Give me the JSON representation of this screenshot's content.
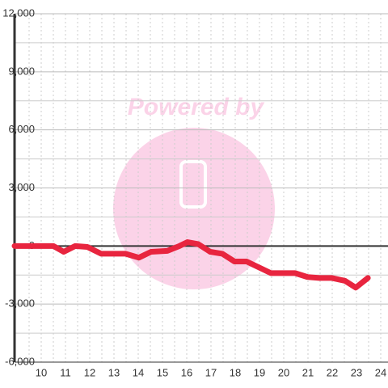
{
  "chart_data": {
    "type": "line",
    "annotations": [
      "Powered by"
    ],
    "x": [
      8.9,
      10.5,
      10.93,
      11.4,
      11.9,
      12.47,
      13.47,
      14.03,
      14.53,
      15.2,
      15.7,
      16.03,
      16.47,
      16.97,
      17.47,
      17.97,
      18.47,
      19.47,
      20.47,
      20.97,
      21.47,
      21.97,
      22.53,
      22.97,
      23.47
    ],
    "series": [
      {
        "color": "#e8253f",
        "values": [
          0,
          0,
          -300,
          0,
          -50,
          -400,
          -400,
          -600,
          -300,
          -250,
          0,
          200,
          100,
          -300,
          -400,
          -800,
          -800,
          -1400,
          -1400,
          -1600,
          -1650,
          -1650,
          -1800,
          -2150,
          -1650
        ]
      }
    ],
    "xlim": [
      8.9,
      24.3
    ],
    "xticks": [
      10,
      11,
      12,
      13,
      14,
      15,
      16,
      17,
      18,
      19,
      20,
      21,
      22,
      23,
      24
    ],
    "xminor": [
      9.5,
      10.5,
      11.5,
      12.5,
      13.5,
      14.5,
      15.5,
      16.5,
      17.5,
      18.5,
      19.5,
      20.5,
      21.5,
      22.5,
      23.5
    ],
    "ylim": [
      -6000,
      12000
    ],
    "yticks": [
      {
        "value": -6000,
        "label": "-6,000"
      },
      {
        "value": -3000,
        "label": "-3,000"
      },
      0,
      {
        "value": 3000,
        "label": "3,000"
      },
      {
        "value": 6000,
        "label": "6,000"
      },
      {
        "value": 9000,
        "label": "9,000"
      },
      {
        "value": 12000,
        "label": "12,000"
      }
    ],
    "yminor": [
      -4500,
      -1500,
      1500,
      4500,
      7500,
      10500
    ],
    "grid": true
  }
}
